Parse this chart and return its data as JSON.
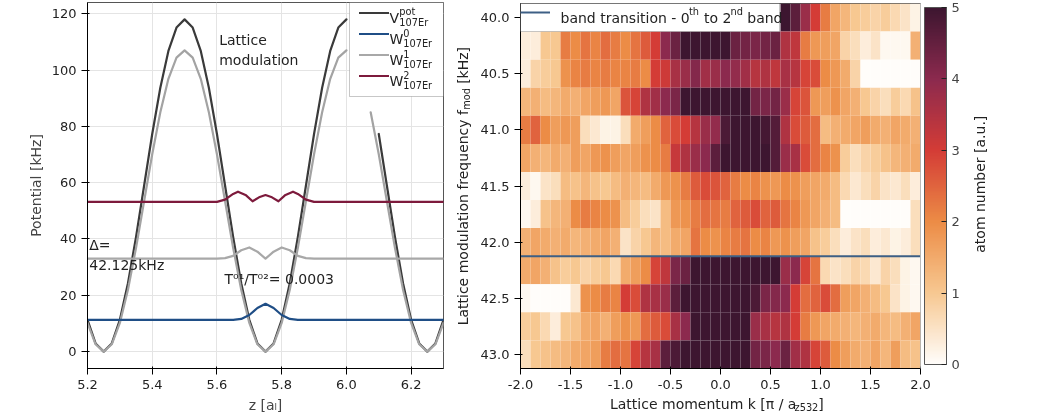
{
  "chart_data": [
    {
      "type": "line",
      "xlabel": "z [aₗ]",
      "ylabel": "Potential [kHz]",
      "x": [
        5.2,
        5.225,
        5.25,
        5.275,
        5.3,
        5.325,
        5.35,
        5.375,
        5.4,
        5.425,
        5.45,
        5.475,
        5.5,
        5.525,
        5.55,
        5.575,
        5.6,
        5.625,
        5.65,
        5.675,
        5.7,
        5.725,
        5.75,
        5.775,
        5.8,
        5.825,
        5.85,
        5.875,
        5.9,
        5.925,
        5.95,
        5.975,
        6.0,
        6.025,
        6.05,
        6.075,
        6.1,
        6.125,
        6.15,
        6.175,
        6.2,
        6.225,
        6.25,
        6.275,
        6.3
      ],
      "series": [
        {
          "name": "V$^{pot}$$_{107Er}$",
          "color": "#3a3a3a",
          "values": [
            11.3,
            2.9,
            0,
            2.9,
            11.3,
            24.3,
            40.7,
            59,
            77.3,
            93.7,
            106.8,
            115.1,
            118,
            115.1,
            106.8,
            93.7,
            77.3,
            59,
            40.7,
            24.3,
            11.3,
            2.9,
            0,
            2.9,
            11.3,
            24.3,
            40.7,
            59,
            77.3,
            93.7,
            106.8,
            115.1,
            118,
            null,
            null,
            null,
            77.3,
            59,
            40.7,
            24.3,
            11.3,
            2.9,
            0,
            2.9,
            11.3
          ]
        },
        {
          "color": "#a3a3a3",
          "values": [
            10.2,
            2.6,
            0,
            2.6,
            10.2,
            22.0,
            36.9,
            53.5,
            70.1,
            85.0,
            96.9,
            104.4,
            107,
            104.4,
            96.9,
            85.0,
            70.1,
            53.5,
            36.9,
            22.0,
            10.2,
            2.6,
            0,
            2.6,
            10.2,
            22.0,
            36.9,
            53.5,
            70.1,
            85.0,
            96.9,
            104.4,
            107,
            null,
            null,
            85.0,
            70.1,
            53.5,
            36.9,
            22.0,
            10.2,
            2.6,
            0,
            2.6,
            10.2
          ]
        },
        {
          "name": "W$^{0}$$_{107Er}$",
          "color": "#1f4e86",
          "x": [
            5.2,
            5.65,
            5.675,
            5.7,
            5.725,
            5.75,
            5.775,
            5.8,
            5.825,
            5.85,
            6.3
          ],
          "values": [
            11.3,
            11.3,
            11.6,
            13.0,
            15.5,
            17,
            15.5,
            13.0,
            11.6,
            11.3,
            11.3
          ]
        },
        {
          "name": "W$^{1}$$_{107Er}$",
          "color": "#a8a8a8",
          "x": [
            5.2,
            5.6,
            5.625,
            5.65,
            5.675,
            5.7,
            5.725,
            5.75,
            5.775,
            5.8,
            5.825,
            5.85,
            5.875,
            5.9,
            6.3
          ],
          "values": [
            33,
            33,
            33.2,
            34,
            36,
            37,
            35.5,
            33,
            35.5,
            37,
            36,
            34,
            33.2,
            33,
            33
          ]
        },
        {
          "name": "W$^{2}$$_{107Er}$",
          "color": "#7d1a3c",
          "x": [
            5.2,
            5.6,
            5.625,
            5.65,
            5.665,
            5.69,
            5.71,
            5.73,
            5.75,
            5.77,
            5.79,
            5.81,
            5.835,
            5.85,
            5.875,
            5.9,
            6.3
          ],
          "values": [
            53.2,
            53.2,
            54,
            56,
            56.8,
            55.5,
            53.4,
            54.8,
            55.6,
            54.8,
            53.4,
            55.5,
            56.8,
            56,
            54,
            53.2,
            53.2
          ]
        }
      ],
      "xlim": [
        5.2,
        6.3
      ],
      "ylim": [
        -6,
        124
      ],
      "xticks": [
        5.2,
        5.4,
        5.6,
        5.8,
        {
          "value": 6.0,
          "label": "6.0"
        },
        6.2
      ],
      "yticks": [
        0,
        20,
        40,
        60,
        80,
        100,
        120
      ],
      "grid": true,
      "legend": "top right",
      "annotations": [
        "Lattice\nmodulation",
        "Δ=\n42.125kHz",
        "T⁰¹/T⁰²= 0.0003"
      ]
    },
    {
      "type": "heatmap",
      "xlabel": "Lattice momentum k [π / a$_{z532}$]",
      "ylabel": "Lattice modulation frequency f$_{mod}$ [kHz]",
      "clabel": "atom number [a.u.]",
      "x": [
        -1.95,
        -1.85,
        -1.75,
        -1.65,
        -1.55,
        -1.45,
        -1.35,
        -1.25,
        -1.15,
        -1.05,
        -0.95,
        -0.85,
        -0.75,
        -0.65,
        -0.55,
        -0.45,
        -0.35,
        -0.25,
        -0.15,
        -0.05,
        0.05,
        0.15,
        0.25,
        0.35,
        0.45,
        0.55,
        0.65,
        0.75,
        0.85,
        0.95,
        1.05,
        1.15,
        1.25,
        1.35,
        1.45,
        1.55,
        1.65,
        1.75,
        1.85,
        1.95
      ],
      "y": [
        40.0,
        40.25,
        40.5,
        40.75,
        41.0,
        41.25,
        41.5,
        41.75,
        42.0,
        42.25,
        42.5,
        42.75,
        43.0
      ],
      "cells": [
        [
          null,
          null,
          null,
          null,
          null,
          null,
          null,
          null,
          null,
          null,
          null,
          null,
          null,
          null,
          null,
          null,
          null,
          null,
          null,
          null,
          null,
          null,
          null,
          null,
          null,
          null,
          5,
          4.6,
          3.8,
          3.0,
          2.2,
          1.6,
          1.3,
          1.0,
          0.9,
          0.8,
          0.9,
          0.7,
          0.5,
          0.2
        ],
        [
          0.3,
          0.3,
          1.0,
          1.0,
          2.2,
          2.0,
          2.3,
          2.1,
          2.4,
          2.2,
          2.0,
          2.3,
          2.6,
          3.0,
          4.0,
          4.4,
          5,
          5,
          5,
          5,
          5,
          4.4,
          4.3,
          4.2,
          4.3,
          4.4,
          3.5,
          3.3,
          2.2,
          1.8,
          1.7,
          1.6,
          0.8,
          0.6,
          0.3,
          0.5,
          0.1,
          0.1,
          0.1,
          1.4
        ],
        [
          0.3,
          0.8,
          0.9,
          1.0,
          1.9,
          2.1,
          2.2,
          2.1,
          2.2,
          2.1,
          2.1,
          2.2,
          2.0,
          3.0,
          3.1,
          3.6,
          3.8,
          4.1,
          3.7,
          3.8,
          4.0,
          3.9,
          3.7,
          3.4,
          3.5,
          3.3,
          3.6,
          3.4,
          2.9,
          2.8,
          2.0,
          1.8,
          1.5,
          0.8,
          0,
          0,
          0,
          0,
          0,
          0
        ],
        [
          1.3,
          1.4,
          1.2,
          1.3,
          1.5,
          1.4,
          1.6,
          1.7,
          1.8,
          1.6,
          2.7,
          2.9,
          3.5,
          3.7,
          4.0,
          4.2,
          5,
          5,
          5,
          5,
          5,
          5,
          5,
          4.3,
          4.2,
          4.3,
          3.8,
          2.9,
          2.7,
          1.8,
          1.7,
          1.9,
          1.6,
          1.4,
          1.0,
          0.8,
          0.6,
          0.9,
          0.7,
          1.1
        ],
        [
          2.2,
          2.5,
          2.0,
          1.7,
          1.8,
          1.7,
          0.6,
          0.4,
          0.2,
          0.2,
          0.6,
          1.5,
          1.7,
          2.0,
          2.5,
          2.8,
          3.0,
          3.4,
          3.8,
          3.9,
          4.8,
          5,
          5,
          5,
          4.9,
          4.7,
          3.5,
          2.8,
          2.6,
          2.4,
          1.2,
          1.4,
          1.5,
          1.6,
          1.7,
          1.5,
          1.4,
          1.6,
          1.5,
          1.4
        ],
        [
          1.6,
          1.4,
          1.3,
          1.5,
          1.4,
          1.7,
          1.6,
          1.8,
          1.9,
          1.7,
          1.6,
          1.7,
          1.9,
          2.0,
          2.2,
          3.2,
          3.5,
          3.8,
          4.0,
          4.6,
          5,
          5,
          5,
          5,
          5,
          4.7,
          3.8,
          3.6,
          2.8,
          2.4,
          2.1,
          1.9,
          0.9,
          0.6,
          0.8,
          0.9,
          1.1,
          1.3,
          1.4,
          1.5
        ],
        [
          0.3,
          0.1,
          0.5,
          0.6,
          1.2,
          1.1,
          1.3,
          1.1,
          1.0,
          1.2,
          1.4,
          1.3,
          1.2,
          1.5,
          1.8,
          1.9,
          2.2,
          2.6,
          2.8,
          2.7,
          2.5,
          2.2,
          2.0,
          2.1,
          1.9,
          1.8,
          2.0,
          1.9,
          1.7,
          1.6,
          1.5,
          1.2,
          0.7,
          0.4,
          0.6,
          0.8,
          0.5,
          0.4,
          0.6,
          0.3
        ],
        [
          0.1,
          0.3,
          1.1,
          1.3,
          1.4,
          2.0,
          2.2,
          2.1,
          2.0,
          1.9,
          1.2,
          0.9,
          0.6,
          0.5,
          1.2,
          1.8,
          1.9,
          2.2,
          2.4,
          2.3,
          2.2,
          2.5,
          2.6,
          2.8,
          2.5,
          2.6,
          2.3,
          2.1,
          1.8,
          1.6,
          1.4,
          1.2,
          0,
          0,
          0,
          0,
          0,
          0,
          0,
          0.6
        ],
        [
          1.4,
          1.6,
          1.5,
          1.4,
          1.5,
          1.3,
          1.4,
          1.5,
          1.6,
          1.4,
          0.5,
          0.8,
          1.0,
          1.3,
          1.2,
          1.5,
          1.6,
          2.3,
          2.0,
          1.9,
          2.1,
          2.2,
          2.3,
          2.0,
          2.1,
          1.8,
          1.9,
          1.7,
          1.6,
          1.1,
          0.9,
          0.6,
          0.3,
          0.5,
          0.6,
          0.3,
          0.4,
          0.2,
          0.3,
          0.6
        ],
        [
          1.5,
          1.6,
          1.4,
          1.1,
          0.9,
          1.0,
          0.8,
          0.9,
          1.0,
          0.7,
          1.5,
          1.7,
          2.0,
          2.9,
          3.3,
          4.2,
          4.4,
          5,
          5,
          5,
          5,
          5,
          5,
          5,
          5,
          5,
          3.8,
          4.0,
          2.9,
          2.3,
          0.7,
          0.5,
          0.6,
          0.8,
          0.7,
          0.4,
          0.8,
          0.6,
          0.2,
          0.1
        ],
        [
          0.1,
          0,
          0,
          0,
          0,
          0.4,
          1.9,
          2.0,
          2.2,
          2.1,
          3.0,
          2.8,
          3.5,
          3.6,
          3.8,
          4.6,
          5,
          5,
          5,
          5,
          5,
          5,
          5,
          4.8,
          4.2,
          4.1,
          4.0,
          3.0,
          2.4,
          2.5,
          2.8,
          2.4,
          1.7,
          1.6,
          1.4,
          1.2,
          1.0,
          0.5,
          0.2,
          0.1
        ],
        [
          0.9,
          1.0,
          0.7,
          0.3,
          1.0,
          1.1,
          1.5,
          1.6,
          1.4,
          1.7,
          1.9,
          1.8,
          2.4,
          2.6,
          2.8,
          3.6,
          4.0,
          5,
          5,
          5,
          5,
          5,
          5,
          3.8,
          3.6,
          3.4,
          3.5,
          3.0,
          2.2,
          1.8,
          1.6,
          1.5,
          1.4,
          1.3,
          1.4,
          1.5,
          1.3,
          1.2,
          1.4,
          1.6
        ],
        [
          0.6,
          1.0,
          1.1,
          1.2,
          1.3,
          1.5,
          1.6,
          1.7,
          2.2,
          2.4,
          2.3,
          2.9,
          3.4,
          3.6,
          4.6,
          4.8,
          5,
          5,
          5,
          5,
          5,
          5,
          5,
          4.3,
          4.2,
          4.0,
          4.4,
          3.7,
          3.5,
          2.9,
          2.6,
          2.0,
          1.7,
          1.5,
          1.4,
          1.6,
          1.3,
          1.7,
          1.2,
          1.1
        ]
      ],
      "xlim": [
        -2,
        2
      ],
      "ylim": [
        43.125,
        39.875
      ],
      "xticks": [
        {
          "value": -2,
          "label": "-2.0"
        },
        {
          "value": -1.5,
          "label": "-1.5"
        },
        {
          "value": -1,
          "label": "-1.0"
        },
        {
          "value": -0.5,
          "label": "-0.5"
        },
        {
          "value": 0,
          "label": "0.0"
        },
        {
          "value": 0.5,
          "label": "0.5"
        },
        {
          "value": 1,
          "label": "1.0"
        },
        {
          "value": 1.5,
          "label": "1.5"
        },
        {
          "value": 2,
          "label": "2.0"
        }
      ],
      "yticks": [
        {
          "value": 40,
          "label": "40.0"
        },
        40.5,
        {
          "value": 41,
          "label": "41.0"
        },
        41.5,
        {
          "value": 42,
          "label": "42.0"
        },
        42.5,
        {
          "value": 43,
          "label": "43.0"
        }
      ],
      "clim": [
        0,
        5
      ],
      "cticks": [
        0,
        1,
        2,
        3,
        4,
        5
      ],
      "ref_lines": [
        {
          "axis": "y",
          "value": 42.125,
          "label": "band transition - 0$^{th}$ to 2$^{nd}$ band",
          "color": "#3d5f85"
        }
      ],
      "legend": "top left"
    }
  ]
}
